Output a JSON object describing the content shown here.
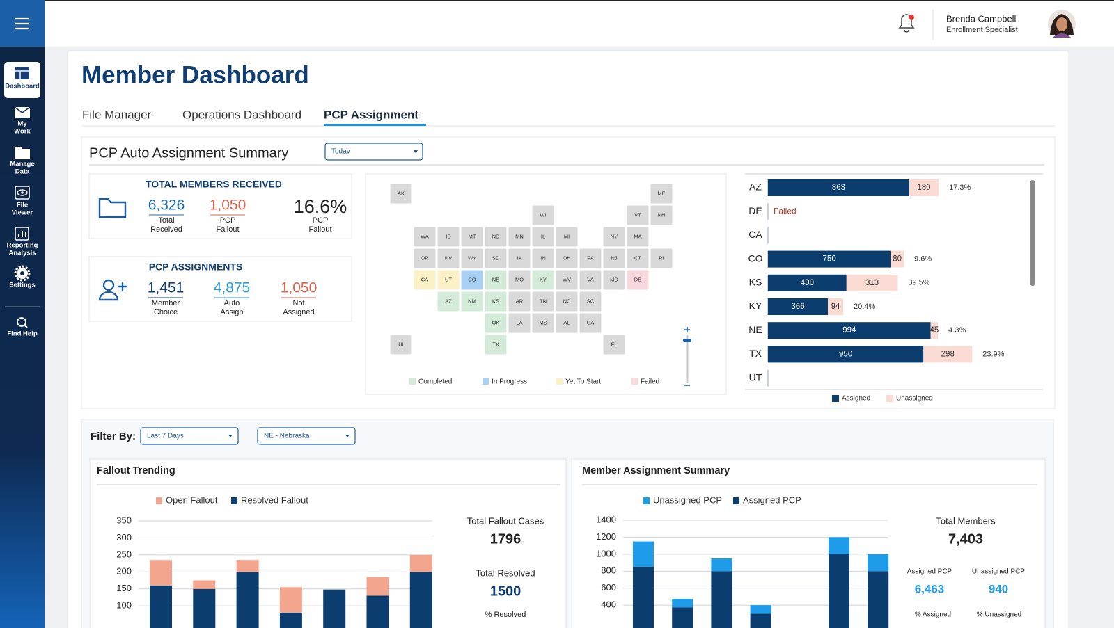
{
  "sidebar": {
    "items": [
      {
        "lines": [
          "Dashboard"
        ]
      },
      {
        "lines": [
          "My",
          "Work"
        ]
      },
      {
        "lines": [
          "Manage",
          "Data"
        ]
      },
      {
        "lines": [
          "File",
          "Viewer"
        ]
      },
      {
        "lines": [
          "Reporting",
          "Analysis"
        ]
      },
      {
        "lines": [
          "Settings"
        ]
      },
      {
        "lines": [
          "Find Help"
        ]
      }
    ]
  },
  "header": {
    "user_name": "Brenda Campbell",
    "user_role": "Enrollment Specialist"
  },
  "page": {
    "title": "Member Dashboard",
    "tabs": [
      "File Manager",
      "Operations Dashboard",
      "PCP Assignment"
    ]
  },
  "summary": {
    "title": "PCP Auto Assignment Summary",
    "period": "Today",
    "total_members": {
      "title": "TOTAL MEMBERS RECEIVED",
      "stats": [
        {
          "value": "6,326",
          "lines": [
            "Total",
            "Received"
          ]
        },
        {
          "value": "1,050",
          "lines": [
            "PCP",
            "Fallout"
          ]
        },
        {
          "value": "16.6%",
          "lines": [
            "PCP",
            "Fallout"
          ]
        }
      ]
    },
    "pcp_assignments": {
      "title": "PCP ASSIGNMENTS",
      "stats": [
        {
          "value": "1,451",
          "lines": [
            "Member",
            "Choice"
          ]
        },
        {
          "value": "4,875",
          "lines": [
            "Auto",
            "Assign"
          ]
        },
        {
          "value": "1,050",
          "lines": [
            "Not",
            "Assigned"
          ]
        }
      ]
    },
    "map": {
      "default_color": "#d9d9d9",
      "states": [
        {
          "label": "AK"
        },
        {
          "label": "ME"
        },
        {
          "label": "WI"
        },
        {
          "label": "VT"
        },
        {
          "label": "NH"
        },
        {
          "label": "WA"
        },
        {
          "label": "ID"
        },
        {
          "label": "MT"
        },
        {
          "label": "ND"
        },
        {
          "label": "MN"
        },
        {
          "label": "IL"
        },
        {
          "label": "MI"
        },
        {
          "label": "NY"
        },
        {
          "label": "MA"
        },
        {
          "label": "OR"
        },
        {
          "label": "NV"
        },
        {
          "label": "WY"
        },
        {
          "label": "SD"
        },
        {
          "label": "IA"
        },
        {
          "label": "IN"
        },
        {
          "label": "OH"
        },
        {
          "label": "PA"
        },
        {
          "label": "NJ"
        },
        {
          "label": "CT"
        },
        {
          "label": "RI"
        },
        {
          "label": "CA",
          "color": "#fbf0c6"
        },
        {
          "label": "UT",
          "color": "#fbf0c6"
        },
        {
          "label": "CO",
          "color": "#a7d0f2"
        },
        {
          "label": "NE",
          "color": "#d4ebd9"
        },
        {
          "label": "MO"
        },
        {
          "label": "KY",
          "color": "#d4ebd9"
        },
        {
          "label": "WV"
        },
        {
          "label": "VA"
        },
        {
          "label": "MD"
        },
        {
          "label": "DE",
          "color": "#f8d7dd"
        },
        {
          "label": "AZ",
          "color": "#d4ebd9"
        },
        {
          "label": "NM",
          "color": "#d4ebd9"
        },
        {
          "label": "KS",
          "color": "#d4ebd9"
        },
        {
          "label": "AR"
        },
        {
          "label": "TN"
        },
        {
          "label": "NC"
        },
        {
          "label": "SC"
        },
        {
          "label": "OK",
          "color": "#d4ebd9"
        },
        {
          "label": "LA"
        },
        {
          "label": "MS"
        },
        {
          "label": "AL"
        },
        {
          "label": "GA"
        },
        {
          "label": "HI"
        },
        {
          "label": "TX",
          "color": "#d4ebd9"
        },
        {
          "label": "FL"
        }
      ],
      "legend": [
        {
          "label": "Completed",
          "color": "#d4ebd9"
        },
        {
          "label": "In Progress",
          "color": "#a7d0f2"
        },
        {
          "label": "Yet To Start",
          "color": "#fbf0c6"
        },
        {
          "label": "Failed",
          "color": "#f8d7dd"
        }
      ]
    }
  },
  "filters": {
    "label": "Filter By:",
    "period": "Last 7 Days",
    "state": "NE - Nebraska"
  },
  "fallout_stats": [
    {
      "label": "Total Fallout Cases",
      "value": "1796"
    },
    {
      "label": "Total Resolved",
      "value": "1500"
    },
    {
      "label": "% Resolved"
    }
  ],
  "member_stats": [
    {
      "label": "Total Members",
      "value": "7,403"
    },
    {
      "label": "Assigned PCP",
      "value": "6,463"
    },
    {
      "label": "Unassigned PCP",
      "value": "940"
    },
    {
      "label": "% Assigned"
    },
    {
      "label": "% Unassigned"
    }
  ],
  "chart_data": [
    {
      "type": "bar",
      "orientation": "horizontal",
      "stacked": true,
      "categories": [
        "AZ",
        "DE",
        "CA",
        "CO",
        "KS",
        "KY",
        "NE",
        "TX",
        "UT"
      ],
      "series": [
        {
          "name": "Assigned",
          "color": "#0b3d6e",
          "values": [
            863,
            null,
            null,
            750,
            480,
            366,
            994,
            950,
            null
          ]
        },
        {
          "name": "Unassigned",
          "color": "#fadcd5",
          "values": [
            180,
            null,
            null,
            80,
            313,
            94,
            45,
            298,
            null
          ]
        }
      ],
      "percent_labels": [
        "17.3%",
        null,
        null,
        "9.6%",
        "39.5%",
        "20.4%",
        "4.3%",
        "23.9%",
        null
      ],
      "status_labels": [
        null,
        "Failed",
        null,
        null,
        null,
        null,
        null,
        null,
        null
      ]
    },
    {
      "type": "bar",
      "stacked": true,
      "title": "Fallout Trending",
      "categories": [
        null,
        null,
        null,
        null,
        null,
        null,
        null
      ],
      "series": [
        {
          "name": "Open Fallout",
          "color": "#f4a58e",
          "values": [
            75,
            25,
            35,
            75,
            0,
            55,
            50
          ]
        },
        {
          "name": "Resolved Fallout",
          "color": "#0b3d6e",
          "values": [
            160,
            150,
            200,
            80,
            148,
            130,
            200
          ]
        }
      ],
      "ylim": [
        0,
        350
      ],
      "yticks": [
        100,
        150,
        200,
        250,
        300,
        350
      ],
      "grid": true
    },
    {
      "type": "bar",
      "stacked": true,
      "title": "Member Assignment Summary",
      "categories": [
        null,
        null,
        null,
        null,
        null,
        null,
        null
      ],
      "series": [
        {
          "name": "Unassigned PCP",
          "color": "#1e9be9",
          "values": [
            300,
            100,
            150,
            100,
            null,
            200,
            200
          ]
        },
        {
          "name": "Assigned PCP",
          "color": "#0b3d6e",
          "values": [
            850,
            375,
            800,
            300,
            null,
            1000,
            800
          ]
        }
      ],
      "ylim": [
        0,
        1400
      ],
      "yticks": [
        400,
        600,
        800,
        1000,
        1200,
        1400
      ],
      "grid": true
    }
  ]
}
